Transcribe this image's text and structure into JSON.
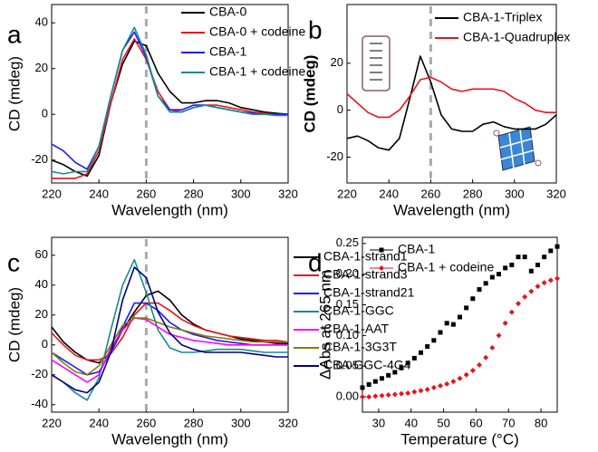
{
  "chart_data": [
    {
      "type": "line",
      "label": "a",
      "xlabel": "Wavelength (nm)",
      "ylabel": "CD (mdeg)",
      "ylabel_bold": false,
      "x": [
        220,
        225,
        230,
        235,
        240,
        245,
        250,
        255,
        260,
        265,
        270,
        275,
        280,
        285,
        290,
        295,
        300,
        305,
        310,
        315,
        320
      ],
      "xlim": [
        220,
        320
      ],
      "xticks": [
        220,
        240,
        260,
        280,
        300,
        320
      ],
      "ylim": [
        -30,
        48
      ],
      "yticks": [
        -20,
        0,
        20,
        40
      ],
      "vline": 260,
      "legend": "upper right",
      "series": [
        {
          "name": "CBA-0",
          "color": "#000000",
          "values": [
            -20,
            -22,
            -25,
            -27,
            -18,
            5,
            22,
            32,
            30,
            18,
            10,
            5,
            5,
            6,
            6,
            5,
            3,
            2,
            1,
            0.5,
            0
          ]
        },
        {
          "name": "CBA-0 + codeine",
          "color": "#e8141c",
          "values": [
            -28,
            -28,
            -28,
            -26,
            -16,
            5,
            24,
            33,
            24,
            10,
            2,
            1,
            3,
            4,
            4,
            3,
            2,
            1,
            0.5,
            0,
            0
          ]
        },
        {
          "name": "CBA-1",
          "color": "#1a1aff",
          "values": [
            -13,
            -16,
            -21,
            -24,
            -14,
            8,
            28,
            36,
            25,
            8,
            2,
            2,
            4,
            4,
            3,
            2,
            1,
            0.5,
            0,
            0,
            0
          ]
        },
        {
          "name": "CBA-1 + codeine",
          "color": "#1a8a8a",
          "values": [
            -25,
            -26,
            -25,
            -25,
            -14,
            8,
            28,
            38,
            26,
            8,
            1,
            1,
            3,
            4,
            3,
            2,
            1,
            0,
            0,
            -0.5,
            -0.5
          ]
        }
      ]
    },
    {
      "type": "line",
      "label": "b",
      "xlabel": "Wavelength (nm)",
      "ylabel": "CD (mdeg)",
      "ylabel_bold": true,
      "x": [
        220,
        225,
        230,
        235,
        240,
        245,
        250,
        255,
        260,
        265,
        270,
        275,
        280,
        285,
        290,
        295,
        300,
        305,
        310,
        315,
        320
      ],
      "xlim": [
        220,
        320
      ],
      "xticks": [
        220,
        240,
        260,
        280,
        300,
        320
      ],
      "ylim": [
        -31,
        45
      ],
      "yticks": [
        -20,
        0,
        20
      ],
      "vline": 260,
      "legend": "top",
      "series": [
        {
          "name": "CBA-1-Triplex",
          "color": "#000000",
          "values": [
            -12,
            -11,
            -13,
            -16,
            -17,
            -12,
            5,
            23,
            12,
            -2,
            -8,
            -9,
            -9,
            -6,
            -5,
            -7,
            -8,
            -8,
            -8,
            -6,
            -2
          ]
        },
        {
          "name": "CBA-1-Quadruplex",
          "color": "#e8141c",
          "values": [
            7,
            3,
            -1,
            -3,
            -3,
            0,
            6,
            13,
            14,
            12,
            9,
            8,
            9,
            9,
            9,
            8,
            5,
            3,
            0,
            -1,
            -1
          ]
        }
      ]
    },
    {
      "type": "line",
      "label": "c",
      "xlabel": "Wavelength (nm)",
      "ylabel": "CD (mdeg)",
      "ylabel_bold": false,
      "x": [
        220,
        225,
        230,
        235,
        240,
        245,
        250,
        255,
        260,
        265,
        270,
        275,
        280,
        285,
        290,
        295,
        300,
        305,
        310,
        315,
        320
      ],
      "xlim": [
        220,
        320
      ],
      "xticks": [
        220,
        240,
        260,
        280,
        300,
        320
      ],
      "ylim": [
        -45,
        72
      ],
      "yticks": [
        -40,
        -20,
        0,
        20,
        40,
        60
      ],
      "vline": 260,
      "legend": "right",
      "series": [
        {
          "name": "CBA-1-strand1",
          "color": "#000000",
          "values": [
            12,
            2,
            -5,
            -10,
            -12,
            -5,
            10,
            22,
            33,
            36,
            30,
            20,
            14,
            10,
            8,
            6,
            4,
            3,
            2,
            1,
            1
          ]
        },
        {
          "name": "CBA-1-strand3",
          "color": "#e8141c",
          "values": [
            8,
            0,
            -7,
            -10,
            -10,
            -6,
            5,
            20,
            28,
            28,
            23,
            17,
            13,
            10,
            8,
            6,
            5,
            4,
            3,
            3,
            2
          ]
        },
        {
          "name": "CBA-1-strand21",
          "color": "#1a1aff",
          "values": [
            -5,
            -10,
            -15,
            -20,
            -18,
            -5,
            12,
            28,
            28,
            23,
            15,
            10,
            7,
            5,
            3,
            2,
            1,
            0,
            0,
            0,
            0
          ]
        },
        {
          "name": "CBA-1-GGC",
          "color": "#1a8a8a",
          "values": [
            -20,
            -25,
            -32,
            -37,
            -22,
            10,
            40,
            57,
            35,
            10,
            -2,
            -5,
            -5,
            -4,
            -3,
            -3,
            -3,
            -4,
            -5,
            -5,
            -5
          ]
        },
        {
          "name": "CBA-1-AAT",
          "color": "#ff00ff",
          "values": [
            -10,
            -15,
            -20,
            -25,
            -20,
            -2,
            10,
            18,
            17,
            12,
            7,
            5,
            3,
            2,
            1,
            0,
            0,
            0,
            0,
            0,
            0
          ]
        },
        {
          "name": "CBA-1-3G3T",
          "color": "#808000",
          "values": [
            -5,
            -12,
            -18,
            -20,
            -14,
            0,
            13,
            18,
            18,
            15,
            12,
            10,
            8,
            6,
            5,
            4,
            3,
            2,
            2,
            2,
            2
          ]
        },
        {
          "name": "CBA-GGC-4G4",
          "color": "#000080",
          "values": [
            -20,
            -25,
            -30,
            -32,
            -25,
            -5,
            30,
            52,
            45,
            22,
            8,
            0,
            -3,
            -5,
            -5,
            -5,
            -5,
            -6,
            -7,
            -8,
            -8
          ]
        }
      ]
    },
    {
      "type": "scatter",
      "label": "d",
      "xlabel": "Temperature (°C)",
      "ylabel": "ΔAbs at 265 nm",
      "ylabel_bold": false,
      "x": [
        25,
        27,
        29,
        31,
        33,
        35,
        37,
        39,
        41,
        43,
        45,
        47,
        49,
        51,
        53,
        55,
        57,
        59,
        61,
        63,
        65,
        67,
        69,
        71,
        73,
        75,
        77,
        79,
        81,
        83,
        85
      ],
      "xlim": [
        25,
        85
      ],
      "xticks": [
        30,
        40,
        50,
        60,
        70,
        80
      ],
      "ylim": [
        -0.025,
        0.26
      ],
      "yticks": [
        {
          "value": 0,
          "label": "0.00"
        },
        {
          "value": 0.05,
          "label": "0.05"
        },
        {
          "value": 0.1,
          "label": "0.10"
        },
        {
          "value": 0.15,
          "label": "0.15"
        },
        {
          "value": 0.2,
          "label": "0.20"
        },
        {
          "value": 0.25,
          "label": "0.25"
        }
      ],
      "legend": "upper left",
      "series": [
        {
          "name": "CBA-1",
          "color": "#000000",
          "marker": "square",
          "values": [
            0.015,
            0.02,
            0.025,
            0.03,
            0.035,
            0.04,
            0.047,
            0.055,
            0.063,
            0.072,
            0.082,
            0.092,
            0.105,
            0.12,
            0.118,
            0.13,
            0.145,
            0.16,
            0.175,
            0.185,
            0.195,
            0.2,
            0.21,
            0.215,
            0.228,
            0.228,
            0.205,
            0.215,
            0.228,
            0.238,
            0.245
          ]
        },
        {
          "name": "CBA-1 + codeine",
          "color": "#e8141c",
          "marker": "diamond",
          "values": [
            0,
            0,
            0.001,
            0.002,
            0.003,
            0.004,
            0.005,
            0.006,
            0.008,
            0.01,
            0.012,
            0.015,
            0.018,
            0.021,
            0.025,
            0.03,
            0.036,
            0.043,
            0.052,
            0.064,
            0.08,
            0.1,
            0.12,
            0.138,
            0.152,
            0.163,
            0.172,
            0.18,
            0.186,
            0.19,
            0.193
          ]
        }
      ]
    }
  ]
}
